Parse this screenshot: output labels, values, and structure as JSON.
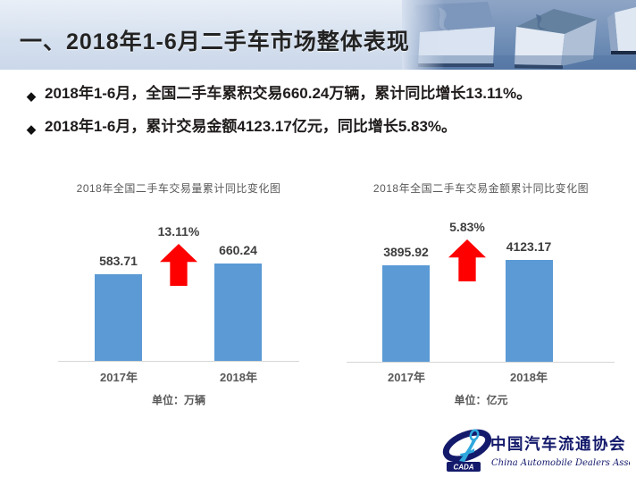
{
  "slide": {
    "title": "一、2018年1-6月二手车市场整体表现",
    "bullet_marker": "◆",
    "bullets": [
      "2018年1-6月，全国二手车累积交易660.24万辆，累计同比增长13.11%。",
      "2018年1-6月，累计交易金额4123.17亿元，同比增长5.83%。"
    ]
  },
  "chart_data": [
    {
      "type": "bar",
      "title": "2018年全国二手车交易量累计同比变化图",
      "categories": [
        "2017年",
        "2018年"
      ],
      "values": [
        583.71,
        660.24
      ],
      "value_labels": [
        "583.71",
        "660.24"
      ],
      "growth_label": "13.11%",
      "unit_label": "单位：万辆",
      "xlabel": "",
      "ylabel": "",
      "ylim": [
        0,
        700
      ],
      "grid": false,
      "legend": false,
      "bar_color": "#5B9AD5",
      "arrow_color": "#FE0000"
    },
    {
      "type": "bar",
      "title": "2018年全国二手车交易金额累计同比变化图",
      "categories": [
        "2017年",
        "2018年"
      ],
      "values": [
        3895.92,
        4123.17
      ],
      "value_labels": [
        "3895.92",
        "4123.17"
      ],
      "growth_label": "5.83%",
      "unit_label": "单位：亿元",
      "xlabel": "",
      "ylabel": "",
      "ylim": [
        0,
        4200
      ],
      "grid": false,
      "legend": false,
      "bar_color": "#5B9AD5",
      "arrow_color": "#FE0000"
    }
  ],
  "logo": {
    "acronym": "CADA",
    "name_cn": "中国汽车流通协会",
    "name_en": "China Automobile Dealers Association"
  },
  "colors": {
    "bar_blue": "#5B9AD5",
    "arrow_red": "#FE0000",
    "header_bg": "#d4dfee",
    "muted_text": "#595959",
    "logo_navy": "#141A6B",
    "logo_lightblue": "#2FA8DD"
  }
}
